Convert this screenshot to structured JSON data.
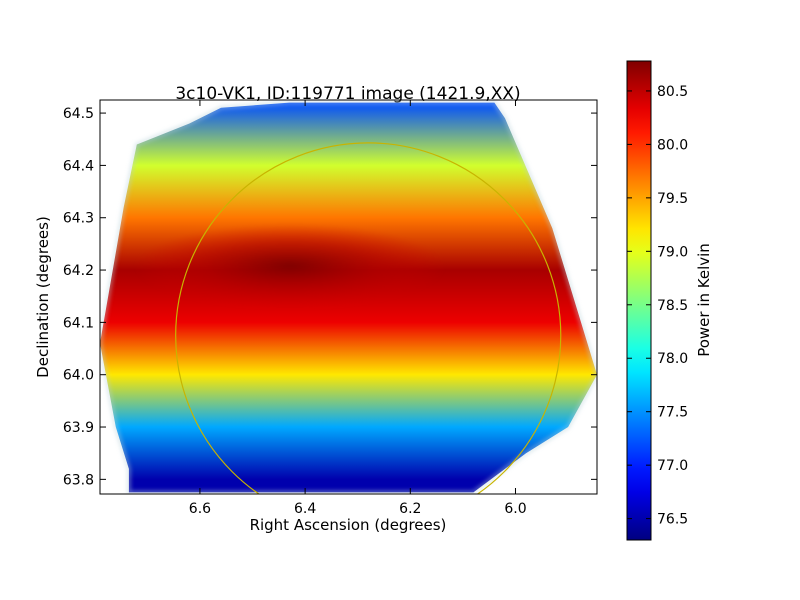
{
  "chart_data": {
    "type": "heatmap",
    "title": "3c10-VK1, ID:119771 image (1421.9,XX)",
    "xlabel": "Right Ascension (degrees)",
    "ylabel": "Declination (degrees)",
    "xlim": [
      6.79,
      5.845
    ],
    "ylim": [
      63.772,
      64.525
    ],
    "x_ticks": [
      6.6,
      6.4,
      6.2,
      6.0
    ],
    "x_tick_labels": [
      "6.6",
      "6.4",
      "6.2",
      "6.0"
    ],
    "y_ticks": [
      63.8,
      63.9,
      64.0,
      64.1,
      64.2,
      64.3,
      64.4,
      64.5
    ],
    "y_tick_labels": [
      "63.8",
      "63.9",
      "64.0",
      "64.1",
      "64.2",
      "64.3",
      "64.4",
      "64.5"
    ],
    "colormap": "jet",
    "colorbar": {
      "label": "Power in Kelvin",
      "vmin": 76.3,
      "vmax": 80.78,
      "ticks": [
        76.5,
        77.0,
        77.5,
        78.0,
        78.5,
        79.0,
        79.5,
        80.0,
        80.5
      ],
      "tick_labels": [
        "76.5",
        "77.0",
        "77.5",
        "78.0",
        "78.5",
        "79.0",
        "79.5",
        "80.0",
        "80.5"
      ]
    },
    "field": {
      "peak_value": 80.78,
      "peak_ra": 6.4,
      "peak_dec": 64.2,
      "min_value": 76.3,
      "description_levels": {
        "dec_64.52": 77.2,
        "dec_64.4": 78.9,
        "dec_64.3": 79.7,
        "dec_64.2": 80.6,
        "dec_64.1": 80.3,
        "dec_64.0": 79.2,
        "dec_63.9": 77.6,
        "dec_63.8": 76.5
      }
    },
    "footprint_vertices_radec": [
      [
        6.735,
        63.775
      ],
      [
        6.735,
        63.82
      ],
      [
        6.76,
        63.9
      ],
      [
        6.79,
        64.06
      ],
      [
        6.745,
        64.32
      ],
      [
        6.72,
        64.44
      ],
      [
        6.62,
        64.48
      ],
      [
        6.56,
        64.51
      ],
      [
        6.43,
        64.52
      ],
      [
        6.04,
        64.52
      ],
      [
        6.02,
        64.49
      ],
      [
        5.93,
        64.28
      ],
      [
        5.845,
        64.0
      ],
      [
        5.9,
        63.9
      ],
      [
        5.98,
        63.85
      ],
      [
        6.08,
        63.775
      ]
    ],
    "circle": {
      "center_ra": 6.28,
      "center_dec": 64.075,
      "radius_deg": 0.368,
      "color": "#c8b400"
    }
  }
}
